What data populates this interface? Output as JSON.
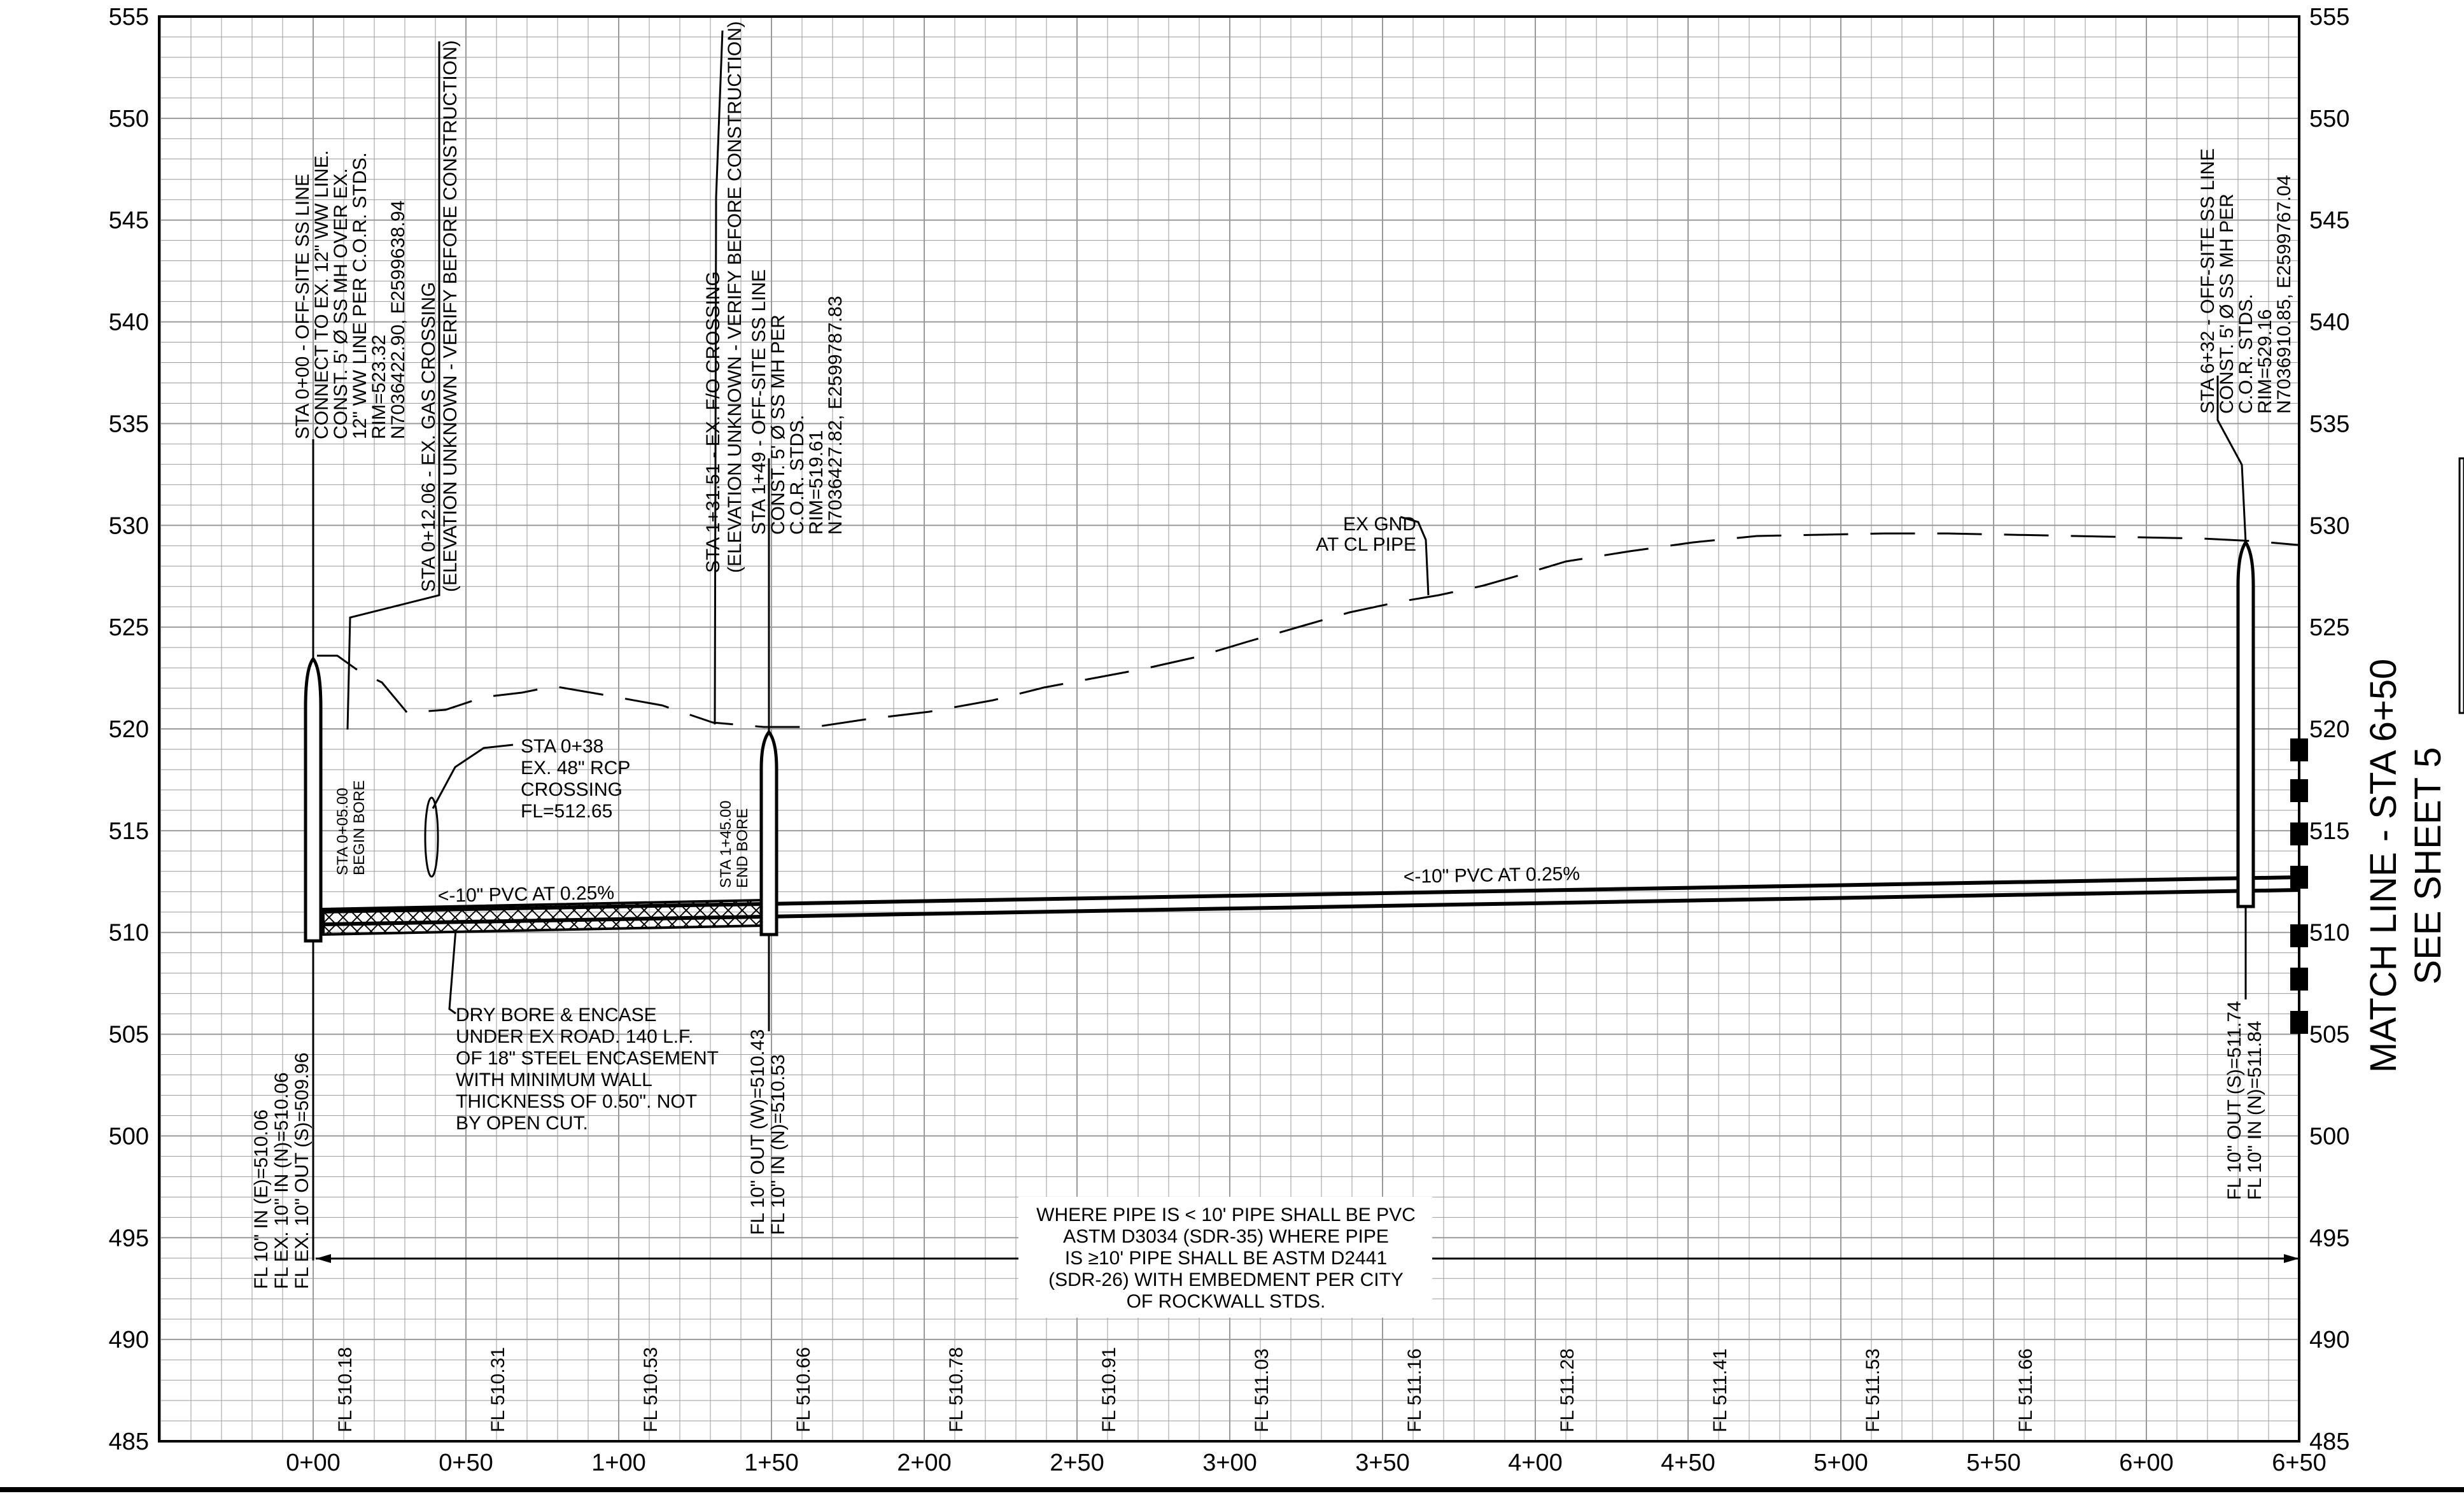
{
  "profile": {
    "elevations": [
      555,
      550,
      545,
      540,
      535,
      530,
      525,
      520,
      515,
      510,
      505,
      500,
      495,
      490,
      485
    ],
    "stations": [
      "0+00",
      "0+50",
      "1+00",
      "1+50",
      "2+00",
      "2+50",
      "3+00",
      "3+50",
      "4+00",
      "4+50",
      "5+00",
      "5+50",
      "6+00",
      "6+50"
    ],
    "flowlines": [
      "FL 510.18",
      "FL 510.31",
      "FL 510.53",
      "FL 510.66",
      "FL 510.78",
      "FL 510.91",
      "FL 511.03",
      "FL 511.16",
      "FL 511.28",
      "FL 511.41",
      "FL 511.53",
      "FL 511.66"
    ]
  },
  "notes": {
    "mh1": [
      "STA 0+00 - OFF-SITE SS LINE",
      "CONNECT TO EX. 12\" WW LINE.",
      "CONST. 5' Ø SS MH OVER EX.",
      "12\" WW LINE PER C.O.R. STDS.",
      "RIM=523.32",
      "N7036422.90, E2599638.94"
    ],
    "gas": [
      "STA 0+12.06 - EX. GAS CROSSING",
      "(ELEVATION UNKNOWN - VERIFY BEFORE CONSTRUCTION)"
    ],
    "fo": [
      "STA 1+31.51 - EX. F/O CROSSING",
      "(ELEVATION UNKNOWN - VERIFY BEFORE CONSTRUCTION)"
    ],
    "mh2": [
      "STA 1+49 - OFF-SITE SS LINE",
      "CONST. 5' Ø SS MH PER",
      "C.O.R. STDS.",
      "RIM=519.61",
      "N7036427.82, E2599787.83"
    ],
    "mh3": [
      "STA 6+32 - OFF-SITE SS LINE",
      "CONST. 5' Ø SS MH PER",
      "C.O.R. STDS.",
      "RIM=529.16",
      "N7036910.85, E2599767.04"
    ],
    "ex_gnd": [
      "EX GND",
      "AT CL PIPE"
    ],
    "rcp": [
      "STA 0+38",
      "EX. 48\" RCP",
      "CROSSING",
      "FL=512.65"
    ],
    "begin_bore": [
      "STA 0+05.00",
      "BEGIN BORE"
    ],
    "end_bore": [
      "STA 1+45.00",
      "END BORE"
    ],
    "pipe1": "<-10\" PVC AT 0.25%",
    "pipe2": "<-10\" PVC AT 0.25%",
    "bore": [
      "DRY BORE & ENCASE",
      "UNDER EX ROAD. 140 L.F.",
      "OF 18\" STEEL ENCASEMENT",
      "WITH MINIMUM WALL",
      "THICKNESS OF 0.50\". NOT",
      "BY OPEN CUT."
    ],
    "fl_mh1": [
      "FL 10\" IN (E)=510.06",
      "FL EX. 10\" IN (N)=510.06",
      "FL EX. 10\" OUT (S)=509.96"
    ],
    "fl_mh2": [
      "FL 10\" OUT (W)=510.43",
      "FL 10\" IN (N)=510.53"
    ],
    "fl_mh3": [
      "FL 10\" OUT (S)=511.74",
      "FL 10\" IN (N)=511.84"
    ],
    "pipe_spec": [
      "WHERE PIPE IS < 10' PIPE SHALL BE PVC",
      "ASTM D3034 (SDR-35) WHERE PIPE",
      "IS ≥10' PIPE SHALL BE ASTM D2441",
      "(SDR-26) WITH EMBEDMENT PER CITY",
      "OF ROCKWALL STDS."
    ],
    "match_line": [
      "MATCH LINE - STA 6+50",
      "SEE SHEET 5"
    ]
  }
}
